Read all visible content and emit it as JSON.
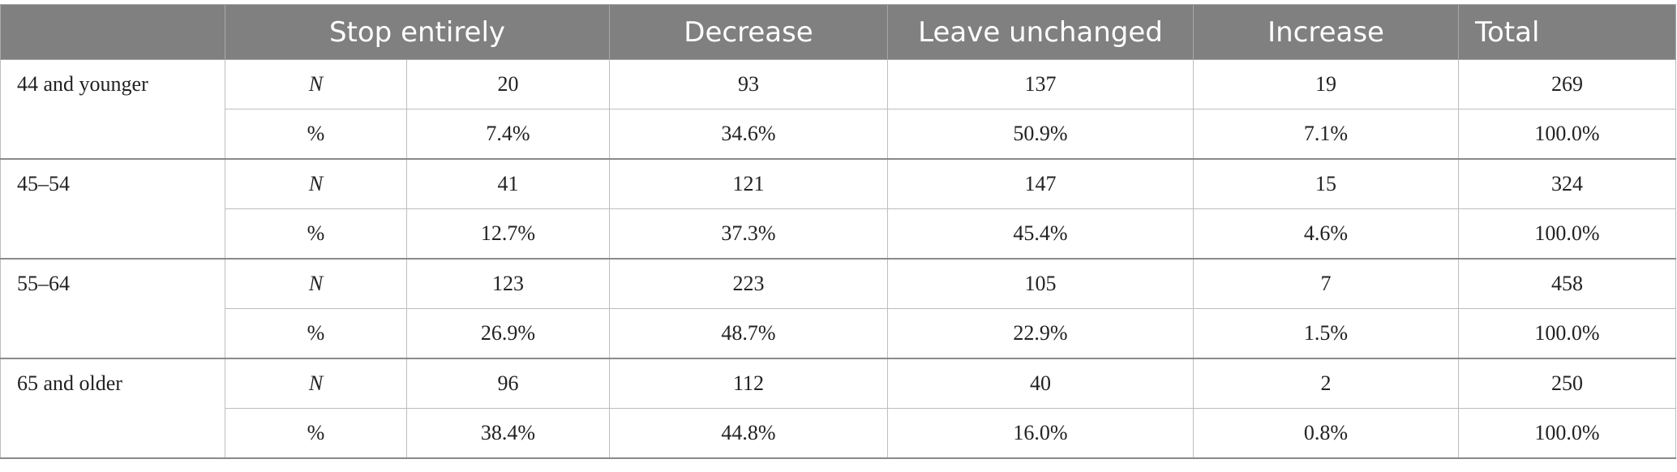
{
  "table": {
    "headers": [
      "",
      "Stop entirely",
      "Decrease",
      "Leave unchanged",
      "Increase",
      "Total"
    ],
    "groups": [
      {
        "label": "44 and younger",
        "rows": [
          {
            "measure": "N",
            "values": [
              "20",
              "93",
              "137",
              "19",
              "269"
            ]
          },
          {
            "measure": "%",
            "values": [
              "7.4%",
              "34.6%",
              "50.9%",
              "7.1%",
              "100.0%"
            ]
          }
        ]
      },
      {
        "label": "45–54",
        "rows": [
          {
            "measure": "N",
            "values": [
              "41",
              "121",
              "147",
              "15",
              "324"
            ]
          },
          {
            "measure": "%",
            "values": [
              "12.7%",
              "37.3%",
              "45.4%",
              "4.6%",
              "100.0%"
            ]
          }
        ]
      },
      {
        "label": "55–64",
        "rows": [
          {
            "measure": "N",
            "values": [
              "123",
              "223",
              "105",
              "7",
              "458"
            ]
          },
          {
            "measure": "%",
            "values": [
              "26.9%",
              "48.7%",
              "22.9%",
              "1.5%",
              "100.0%"
            ]
          }
        ]
      },
      {
        "label": "65 and older",
        "rows": [
          {
            "measure": "N",
            "values": [
              "96",
              "112",
              "40",
              "2",
              "250"
            ]
          },
          {
            "measure": "%",
            "values": [
              "38.4%",
              "44.8%",
              "16.0%",
              "0.8%",
              "100.0%"
            ]
          }
        ]
      }
    ]
  },
  "colors": {
    "header_background": "#808080",
    "header_text": "#ffffff",
    "grid_line": "#bdbdbd"
  }
}
